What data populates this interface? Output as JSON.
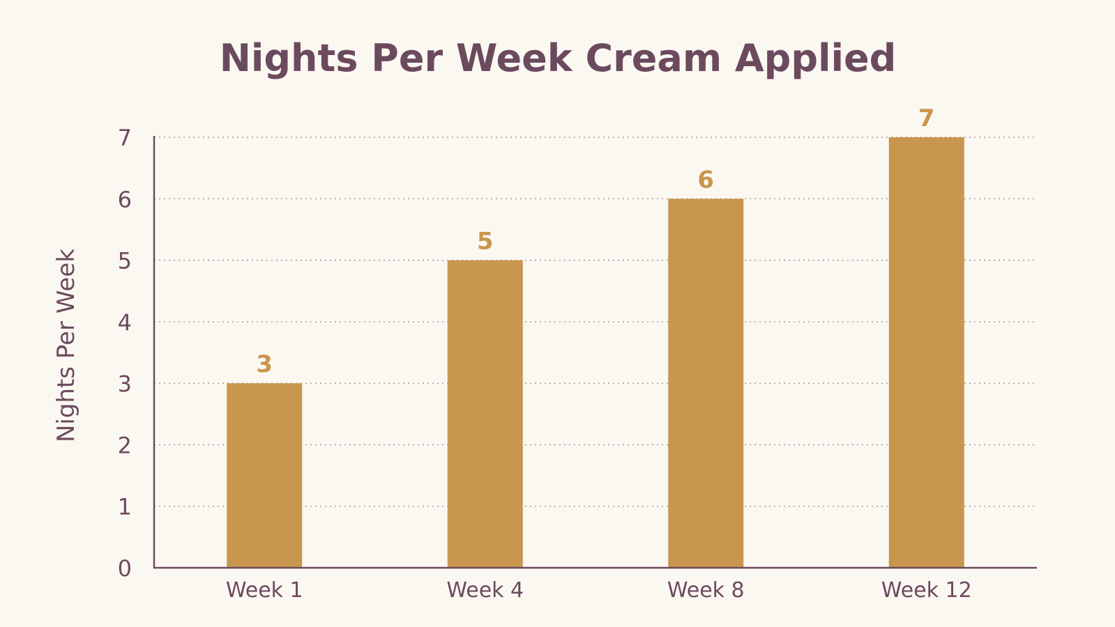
{
  "colors": {
    "background": "#fbf8f2",
    "title": "#6b4a5e",
    "axis": "#6b4a5e",
    "bar": "#c8964c",
    "value_label": "#c8964c",
    "grid": "#9a8a90"
  },
  "chart_data": {
    "type": "bar",
    "title": "Nights Per Week Cream Applied",
    "xlabel": "",
    "ylabel": "Nights Per Week",
    "categories": [
      "Week 1",
      "Week 4",
      "Week 8",
      "Week 12"
    ],
    "values": [
      3,
      5,
      6,
      7
    ],
    "value_labels": [
      "3",
      "5",
      "6",
      "7"
    ],
    "ylim": [
      0,
      7
    ],
    "yticks": [
      "0",
      "1",
      "2",
      "3",
      "4",
      "5",
      "6",
      "7"
    ],
    "grid": "horizontal dotted",
    "legend": "none"
  }
}
